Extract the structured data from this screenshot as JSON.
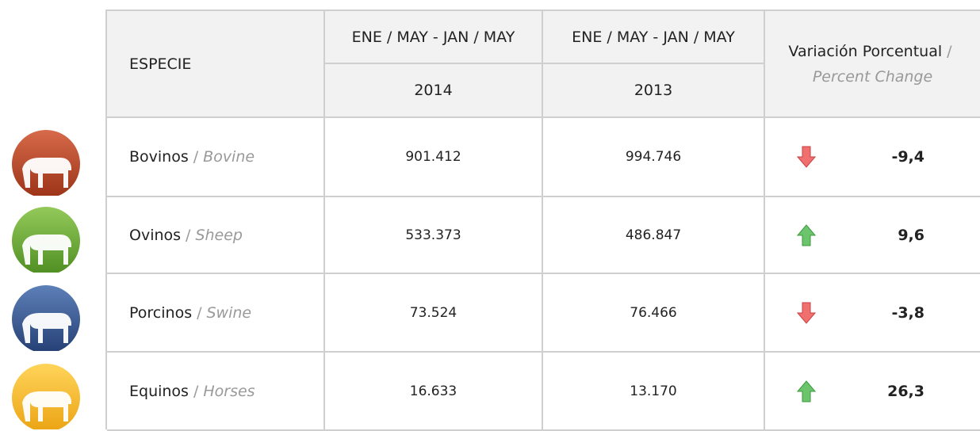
{
  "table": {
    "separator": "/",
    "header": {
      "species": "ESPECIE",
      "period_2014": "ENE / MAY - JAN / MAY",
      "period_2013": "ENE / MAY - JAN / MAY",
      "year_2014": "2014",
      "year_2013": "2013",
      "change_es": "Variación Porcentual",
      "change_en": "Percent Change"
    },
    "rows": [
      {
        "name_es": "Bovinos",
        "name_en": "Bovine",
        "v2014": "901.412",
        "v2013": "994.746",
        "change": "-9,4"
      },
      {
        "name_es": "Ovinos",
        "name_en": "Sheep",
        "v2014": "533.373",
        "v2013": "486.847",
        "change": "9,6"
      },
      {
        "name_es": "Porcinos",
        "name_en": "Swine",
        "v2014": "73.524",
        "v2013": "76.466",
        "change": "-3,8"
      },
      {
        "name_es": "Equinos",
        "name_en": "Horses",
        "v2014": "16.633",
        "v2013": "13.170",
        "change": "26,3"
      }
    ]
  }
}
